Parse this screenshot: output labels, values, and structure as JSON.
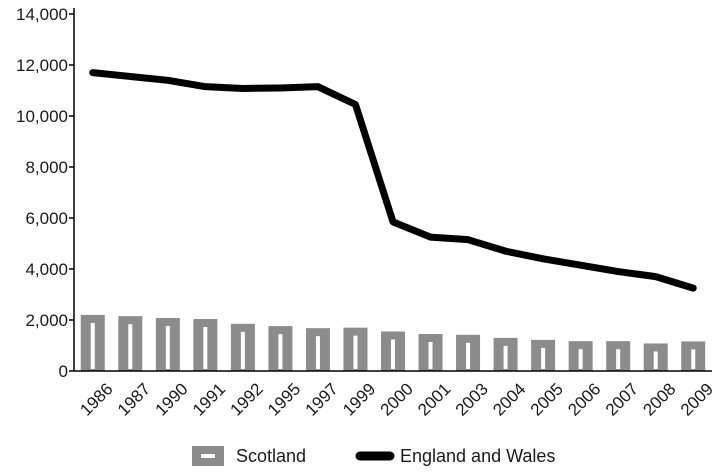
{
  "chart_data": {
    "type": "bar",
    "categories": [
      "1986",
      "1987",
      "1990",
      "1991",
      "1992",
      "1995",
      "1997",
      "1999",
      "2000",
      "2001",
      "2003",
      "2004",
      "2005",
      "2006",
      "2007",
      "2008",
      "2009"
    ],
    "series": [
      {
        "name": "Scotland",
        "type": "bar",
        "color": "#8c8c8c",
        "values": [
          2200,
          2150,
          2080,
          2040,
          1850,
          1760,
          1680,
          1700,
          1550,
          1450,
          1420,
          1300,
          1220,
          1170,
          1170,
          1080,
          1160
        ]
      },
      {
        "name": "England and Wales",
        "type": "line",
        "color": "#000000",
        "values": [
          11700,
          11550,
          11400,
          11150,
          11080,
          11100,
          11150,
          10450,
          5850,
          5250,
          5150,
          4700,
          4400,
          4150,
          3900,
          3700,
          3250
        ]
      }
    ],
    "yticks": [
      "0",
      "2,000",
      "4,000",
      "6,000",
      "8,000",
      "10,000",
      "12,000",
      "14,000"
    ],
    "ylim": [
      0,
      14000
    ],
    "legend_position": "bottom",
    "xlabel": "",
    "ylabel": "",
    "title": ""
  }
}
